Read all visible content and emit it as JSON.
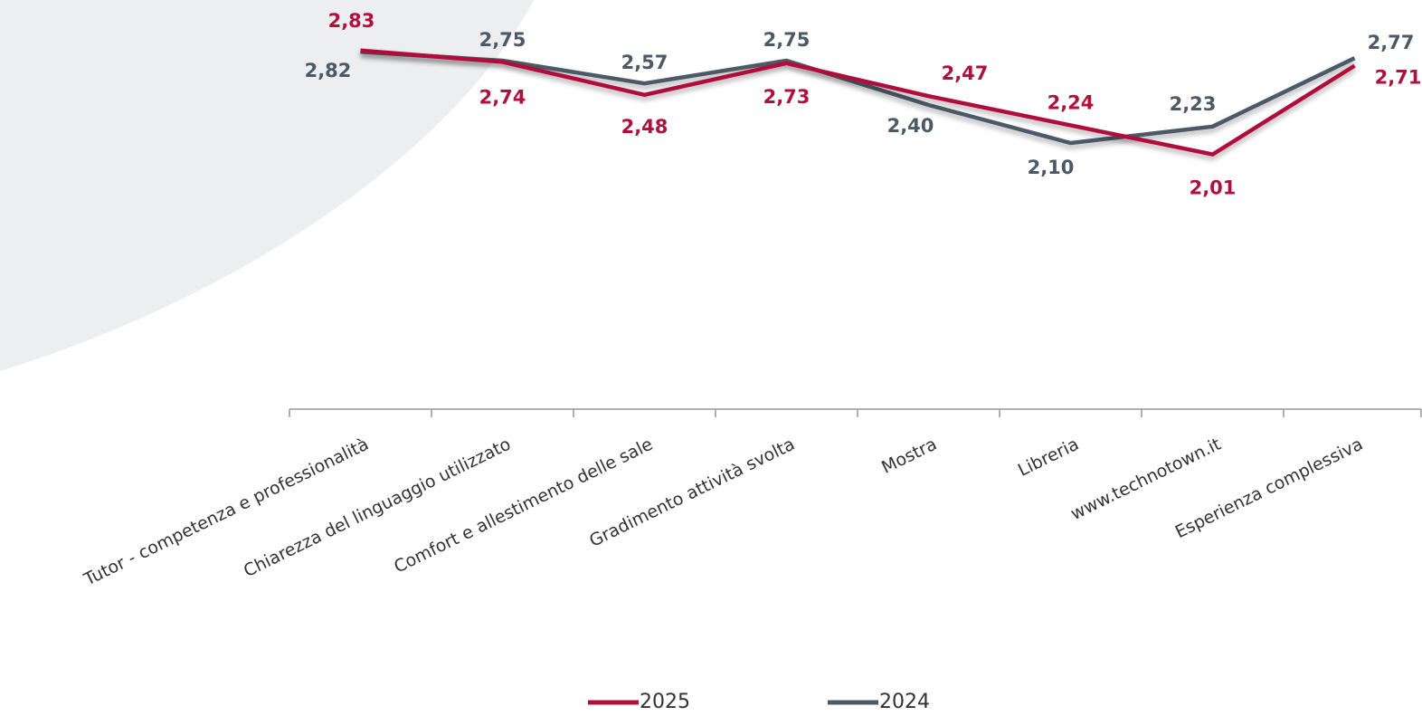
{
  "chart_data": {
    "type": "line",
    "categories": [
      "Tutor - competenza e professionalità",
      "Chiarezza del linguaggio utilizzato",
      "Comfort e allestimento delle sale",
      "Gradimento attività svolta",
      "Mostra",
      "Libreria",
      "www.technotown.it",
      "Esperienza complessiva"
    ],
    "series": [
      {
        "name": "2025",
        "color": "#b0103c",
        "values": [
          2.83,
          2.74,
          2.48,
          2.73,
          2.47,
          2.24,
          2.01,
          2.71
        ],
        "value_labels": [
          "2,83",
          "2,74",
          "2,48",
          "2,73",
          "2,47",
          "2,24",
          "2,01",
          "2,71"
        ]
      },
      {
        "name": "2024",
        "color": "#4b5a66",
        "values": [
          2.82,
          2.75,
          2.57,
          2.75,
          2.4,
          2.1,
          2.23,
          2.77
        ],
        "value_labels": [
          "2,82",
          "2,75",
          "2,57",
          "2,75",
          "2,40",
          "2,10",
          "2,23",
          "2,77"
        ]
      }
    ],
    "ylim": [
      0,
      3
    ],
    "legend": "bottom"
  }
}
